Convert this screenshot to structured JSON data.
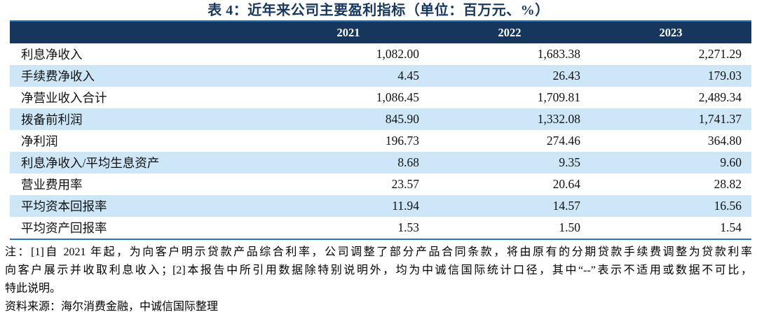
{
  "page": {
    "title": "表 4：近年来公司主要盈利指标（单位：百万元、%）"
  },
  "table": {
    "metric_header": "",
    "columns": [
      "2021",
      "2022",
      "2023"
    ],
    "rows": [
      {
        "label": "利息净收入",
        "values": [
          "1,082.00",
          "1,683.38",
          "2,271.29"
        ]
      },
      {
        "label": "手续费净收入",
        "values": [
          "4.45",
          "26.43",
          "179.03"
        ]
      },
      {
        "label": "净营业收入合计",
        "values": [
          "1,086.45",
          "1,709.81",
          "2,489.34"
        ]
      },
      {
        "label": "拨备前利润",
        "values": [
          "845.90",
          "1,332.08",
          "1,741.37"
        ]
      },
      {
        "label": "净利润",
        "values": [
          "196.73",
          "274.46",
          "364.80"
        ]
      },
      {
        "label": "利息净收入/平均生息资产",
        "values": [
          "8.68",
          "9.35",
          "9.60"
        ]
      },
      {
        "label": "营业费用率",
        "values": [
          "23.57",
          "20.64",
          "28.82"
        ]
      },
      {
        "label": "平均资本回报率",
        "values": [
          "11.94",
          "14.57",
          "16.56"
        ]
      },
      {
        "label": "平均资产回报率",
        "values": [
          "1.53",
          "1.50",
          "1.54"
        ]
      }
    ]
  },
  "notes": {
    "lines": [
      "注：[1]自 2021 年起，为向客户明示贷款产品综合利率，公司调整了部分产品合同条款，将由原有的分期贷款手续费调整为贷款利率",
      "向客户展示并收取利息收入；[2]本报告中所引用数据除特别说明外，均为中诚信国际统计口径，其中“--”表示不适用或数据不可比，",
      "特此说明。"
    ],
    "source": "资料来源：海尔消费金融，中诚信国际整理"
  },
  "colors": {
    "header_bg": "#17365D",
    "row_alt_bg": "#CDE7F8",
    "rule_blue": "#2E74B5",
    "title_color": "#17375E"
  },
  "chart_data": {
    "type": "table",
    "title": "表 4：近年来公司主要盈利指标（单位：百万元、%）",
    "unit": "百万元、%",
    "columns": [
      "2021",
      "2022",
      "2023"
    ],
    "rows": [
      {
        "metric": "利息净收入",
        "values": [
          1082.0,
          1683.38,
          2271.29
        ]
      },
      {
        "metric": "手续费净收入",
        "values": [
          4.45,
          26.43,
          179.03
        ]
      },
      {
        "metric": "净营业收入合计",
        "values": [
          1086.45,
          1709.81,
          2489.34
        ]
      },
      {
        "metric": "拨备前利润",
        "values": [
          845.9,
          1332.08,
          1741.37
        ]
      },
      {
        "metric": "净利润",
        "values": [
          196.73,
          274.46,
          364.8
        ]
      },
      {
        "metric": "利息净收入/平均生息资产",
        "values": [
          8.68,
          9.35,
          9.6
        ]
      },
      {
        "metric": "营业费用率",
        "values": [
          23.57,
          20.64,
          28.82
        ]
      },
      {
        "metric": "平均资本回报率",
        "values": [
          11.94,
          14.57,
          16.56
        ]
      },
      {
        "metric": "平均资产回报率",
        "values": [
          1.53,
          1.5,
          1.54
        ]
      }
    ],
    "notes": "注：[1]自 2021 年起，为向客户明示贷款产品综合利率，公司调整了部分产品合同条款，将由原有的分期贷款手续费调整为贷款利率向客户展示并收取利息收入；[2]本报告中所引用数据除特别说明外，均为中诚信国际统计口径，其中“--”表示不适用或数据不可比，特此说明。",
    "source": "资料来源：海尔消费金融，中诚信国际整理"
  }
}
